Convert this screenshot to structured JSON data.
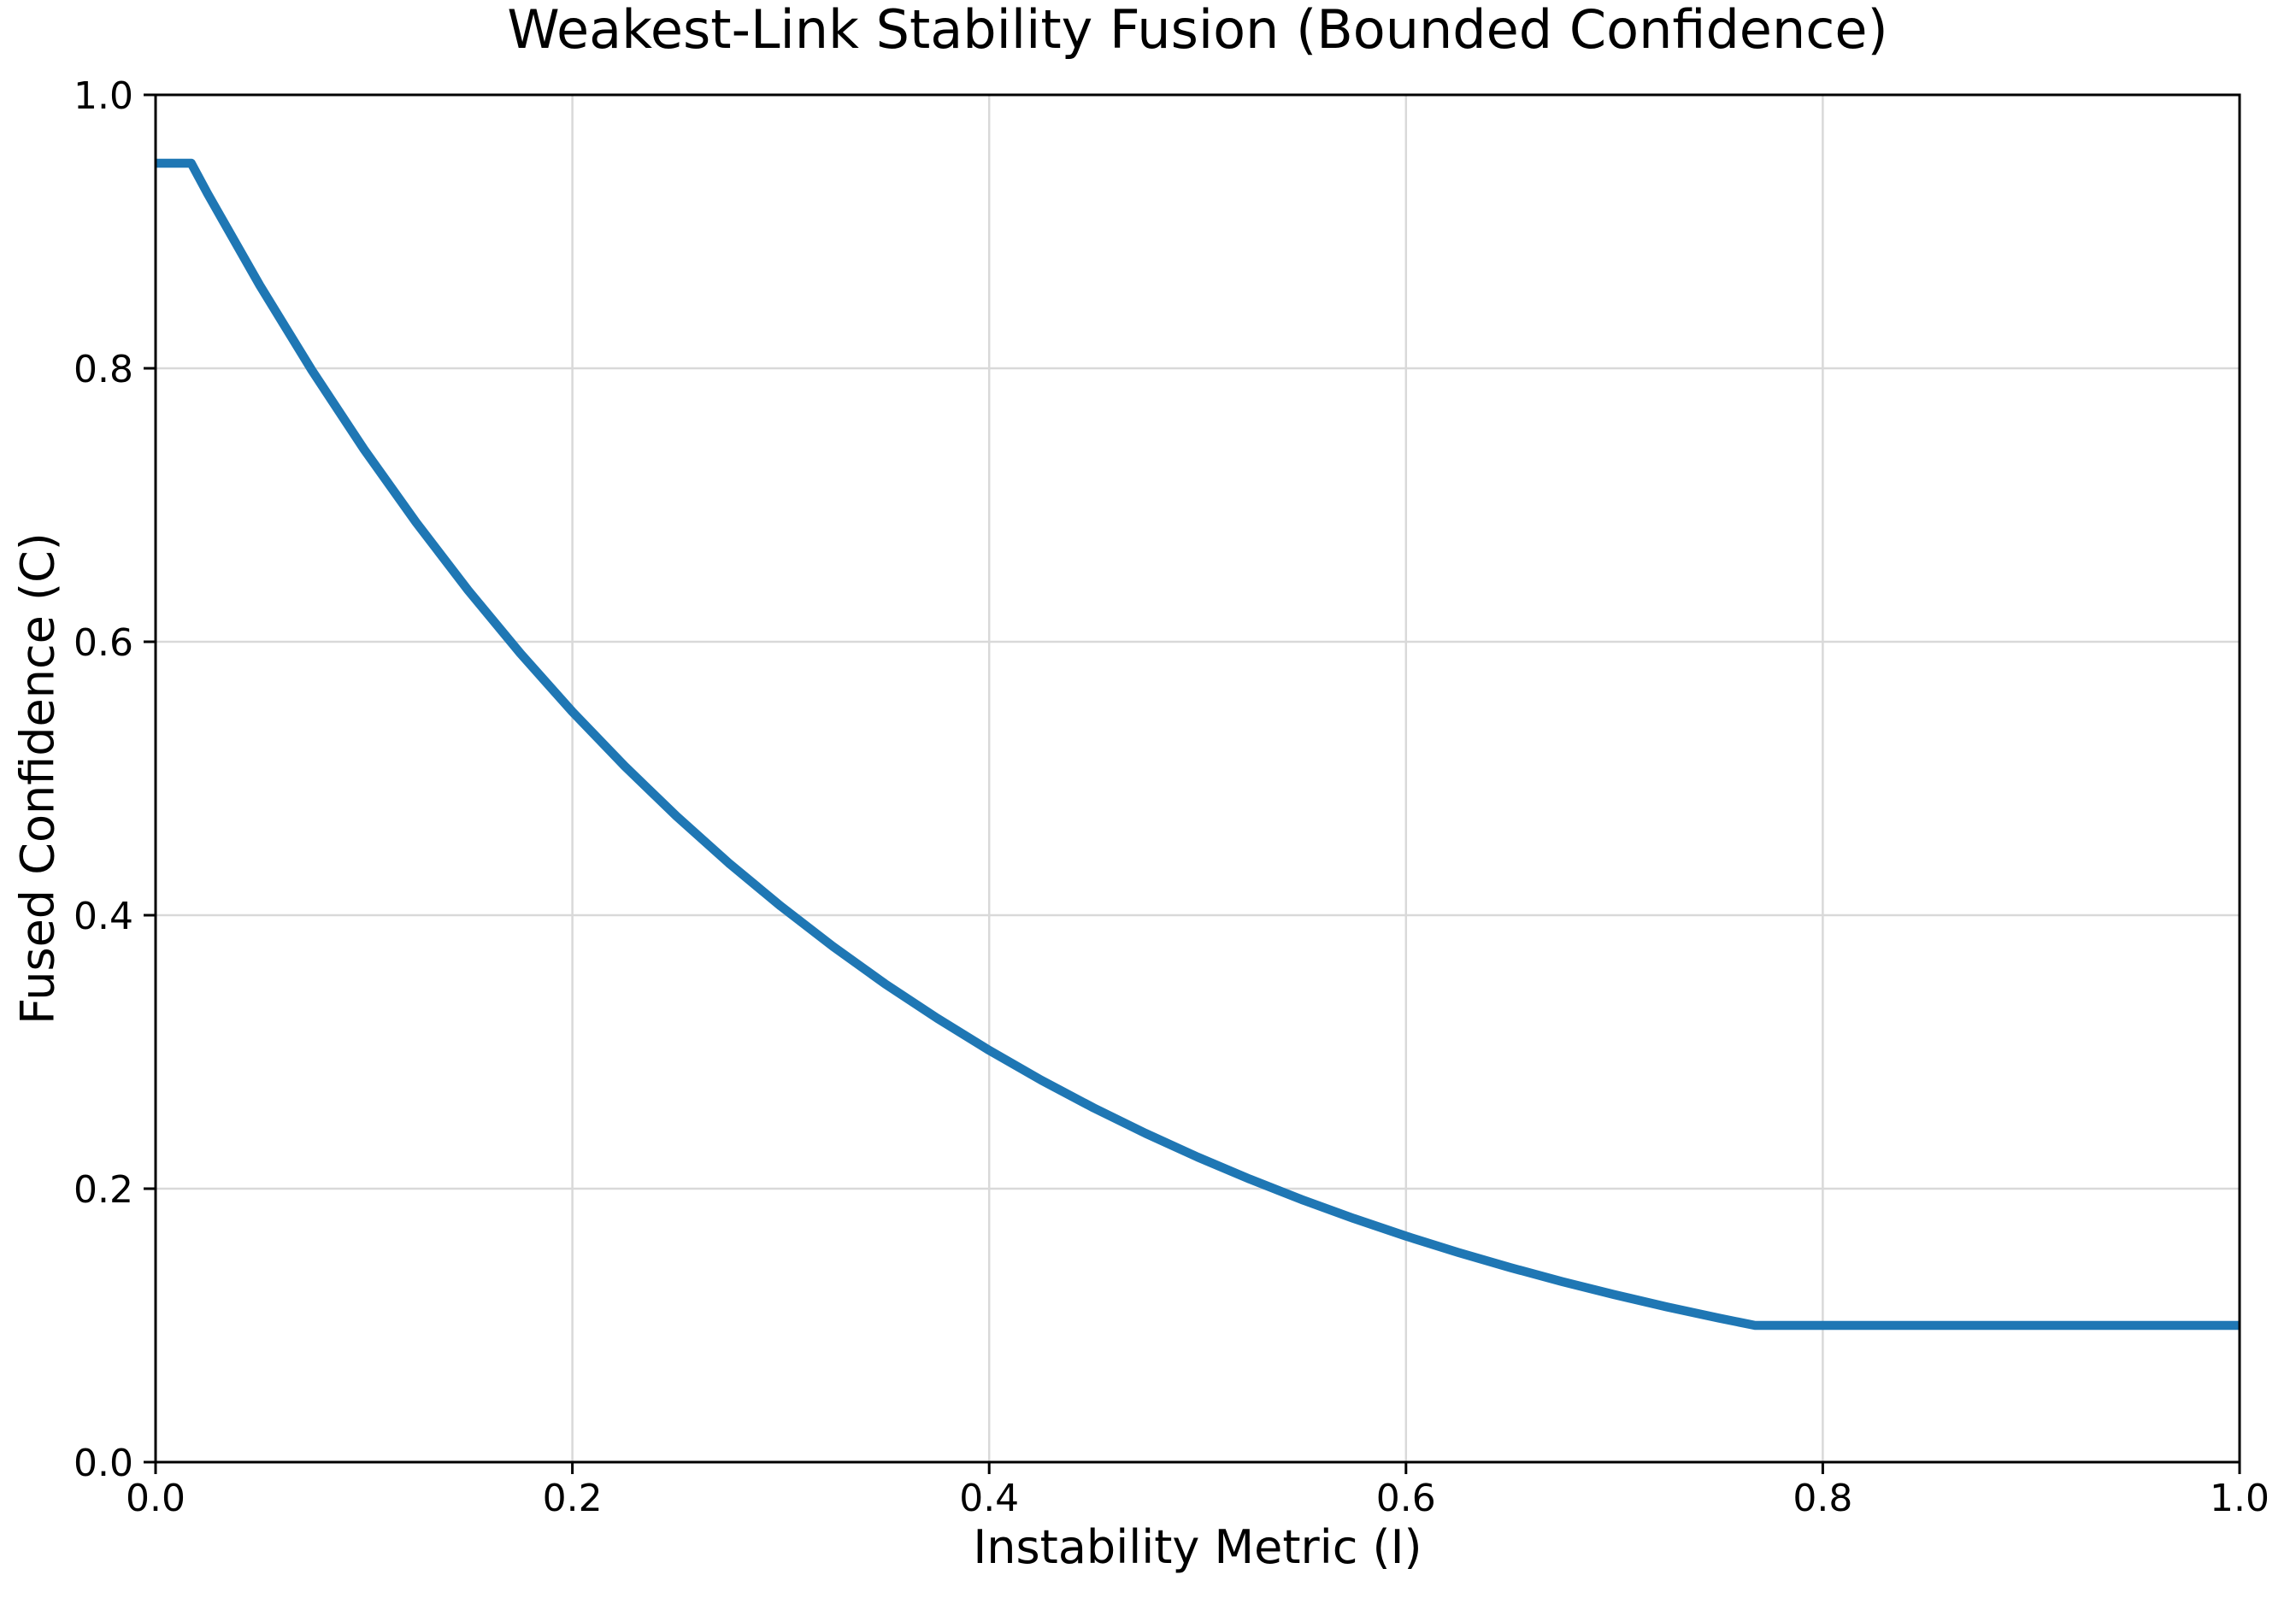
{
  "chart_data": {
    "type": "line",
    "title": "Weakest-Link Stability Fusion (Bounded Confidence)",
    "xlabel": "Instability Metric (I)",
    "ylabel": "Fused Confidence (C)",
    "xlim": [
      0.0,
      1.0
    ],
    "ylim": [
      0.0,
      1.0
    ],
    "xticks": {
      "values": [
        0.0,
        0.2,
        0.4,
        0.6,
        0.8,
        1.0
      ],
      "labels": [
        "0.0",
        "0.2",
        "0.4",
        "0.6",
        "0.8",
        "1.0"
      ]
    },
    "yticks": {
      "values": [
        0.0,
        0.2,
        0.4,
        0.6,
        0.8,
        1.0
      ],
      "labels": [
        "0.0",
        "0.2",
        "0.4",
        "0.6",
        "0.8",
        "1.0"
      ]
    },
    "grid": true,
    "legend_position": "none",
    "colors": {
      "line": "#1f77b4",
      "grid": "#d9d9d9",
      "axis": "#000000",
      "text": "#000000",
      "background": "#ffffff"
    },
    "series": [
      {
        "name": "fused_confidence_curve",
        "color": "#1f77b4",
        "points": [
          [
            0.0,
            0.95
          ],
          [
            0.0171,
            0.95
          ],
          [
            0.025,
            0.9277
          ],
          [
            0.05,
            0.8607
          ],
          [
            0.075,
            0.7985
          ],
          [
            0.1,
            0.7408
          ],
          [
            0.125,
            0.6873
          ],
          [
            0.15,
            0.6376
          ],
          [
            0.175,
            0.5916
          ],
          [
            0.2,
            0.5488
          ],
          [
            0.225,
            0.5092
          ],
          [
            0.25,
            0.4724
          ],
          [
            0.275,
            0.4382
          ],
          [
            0.3,
            0.4066
          ],
          [
            0.325,
            0.3772
          ],
          [
            0.35,
            0.3499
          ],
          [
            0.375,
            0.3247
          ],
          [
            0.4,
            0.3012
          ],
          [
            0.425,
            0.2794
          ],
          [
            0.45,
            0.2592
          ],
          [
            0.475,
            0.2405
          ],
          [
            0.5,
            0.2231
          ],
          [
            0.525,
            0.207
          ],
          [
            0.55,
            0.192
          ],
          [
            0.575,
            0.1782
          ],
          [
            0.6,
            0.1653
          ],
          [
            0.625,
            0.1534
          ],
          [
            0.65,
            0.1423
          ],
          [
            0.675,
            0.132
          ],
          [
            0.7,
            0.1225
          ],
          [
            0.725,
            0.1136
          ],
          [
            0.75,
            0.1054
          ],
          [
            0.7675,
            0.1
          ],
          [
            0.8,
            0.1
          ],
          [
            0.85,
            0.1
          ],
          [
            0.9,
            0.1
          ],
          [
            0.95,
            0.1
          ],
          [
            1.0,
            0.1
          ]
        ]
      }
    ]
  }
}
